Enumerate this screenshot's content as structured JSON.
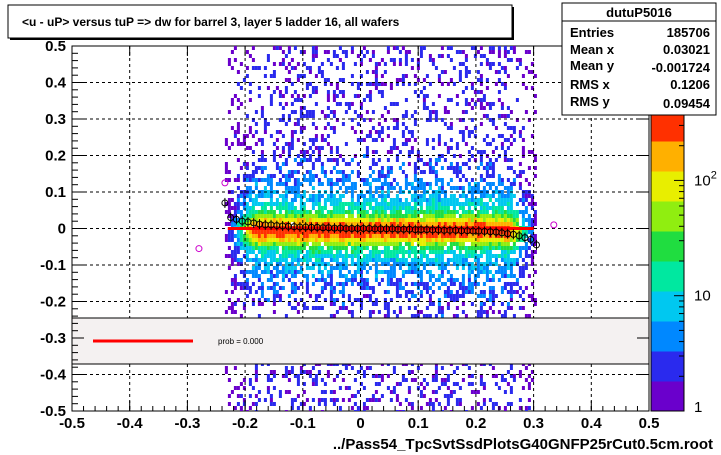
{
  "chart_data": {
    "type": "heatmap",
    "title": "<u - uP>       versus  tuP =>  dw for barrel 3, layer 5 ladder 16, all wafers",
    "xlabel": "../Pass54_TpcSvtSsdPlotsG40GNFP25rCut0.5cm.root",
    "ylabel": "",
    "xlim": [
      -0.5,
      0.5
    ],
    "ylim": [
      -0.5,
      0.5
    ],
    "x_ticks": [
      "-0.5",
      "-0.4",
      "-0.3",
      "-0.2",
      "-0.1",
      "0",
      "0.1",
      "0.2",
      "0.3",
      "0.4",
      "0.5"
    ],
    "y_ticks": [
      "-0.5",
      "-0.4",
      "-0.3",
      "-0.2",
      "-0.1",
      "0",
      "0.1",
      "0.2",
      "0.3",
      "0.4",
      "0.5"
    ],
    "grid": true,
    "color_scale": "log",
    "colorbar_ticks": [
      {
        "value": 1,
        "label": "1"
      },
      {
        "value": 10,
        "label": "10"
      },
      {
        "value": 100,
        "label": "10",
        "sup": "2"
      }
    ],
    "colorbar_colors": [
      "#6a00cc",
      "#2a2aee",
      "#0088ff",
      "#00c8f0",
      "#00e8a0",
      "#20dd40",
      "#90ee10",
      "#e8ee00",
      "#ffb000",
      "#ff3000"
    ],
    "stats": {
      "name": "dutuP5016",
      "rows": [
        {
          "label": "Entries",
          "value": "185706"
        },
        {
          "label": "Mean x",
          "value": "0.03021"
        },
        {
          "label": "Mean y",
          "value": "-0.001724"
        },
        {
          "label": "RMS x",
          "value": "0.1206"
        },
        {
          "label": "RMS y",
          "value": "0.09454"
        }
      ]
    },
    "legend": {
      "entries": [
        {
          "label": "prob = 0.000",
          "color": "#ff0000"
        }
      ],
      "placement": "lower-center"
    },
    "fit_line": {
      "color": "#ff0000",
      "x": [
        -0.23,
        0.3
      ],
      "y": [
        0.0,
        0.0
      ]
    },
    "profile_points": {
      "x": [
        -0.235,
        -0.225,
        -0.215,
        -0.205,
        -0.195,
        -0.185,
        -0.175,
        -0.165,
        -0.155,
        -0.145,
        -0.135,
        -0.125,
        -0.115,
        -0.105,
        -0.095,
        -0.085,
        -0.075,
        -0.065,
        -0.055,
        -0.045,
        -0.035,
        -0.025,
        -0.015,
        -0.005,
        0.005,
        0.015,
        0.025,
        0.035,
        0.045,
        0.055,
        0.065,
        0.075,
        0.085,
        0.095,
        0.105,
        0.115,
        0.125,
        0.135,
        0.145,
        0.155,
        0.165,
        0.175,
        0.185,
        0.195,
        0.205,
        0.215,
        0.225,
        0.235,
        0.245,
        0.255,
        0.265,
        0.275,
        0.285,
        0.295,
        0.305
      ],
      "y": [
        0.07,
        0.03,
        0.025,
        0.02,
        0.018,
        0.015,
        0.012,
        0.01,
        0.01,
        0.008,
        0.007,
        0.006,
        0.005,
        0.004,
        0.004,
        0.003,
        0.003,
        0.002,
        0.002,
        0.001,
        0.001,
        0.0,
        0.0,
        0.0,
        0.0,
        0.0,
        -0.001,
        -0.001,
        -0.001,
        -0.001,
        -0.002,
        -0.002,
        -0.002,
        -0.003,
        -0.003,
        -0.003,
        -0.004,
        -0.004,
        -0.005,
        -0.005,
        -0.005,
        -0.006,
        -0.006,
        -0.007,
        -0.007,
        -0.008,
        -0.009,
        -0.01,
        -0.012,
        -0.014,
        -0.016,
        -0.02,
        -0.025,
        -0.03,
        -0.045
      ]
    },
    "outlier_points": {
      "x": [
        -0.28,
        -0.235,
        0.335
      ],
      "y": [
        -0.055,
        0.125,
        0.01
      ]
    }
  }
}
